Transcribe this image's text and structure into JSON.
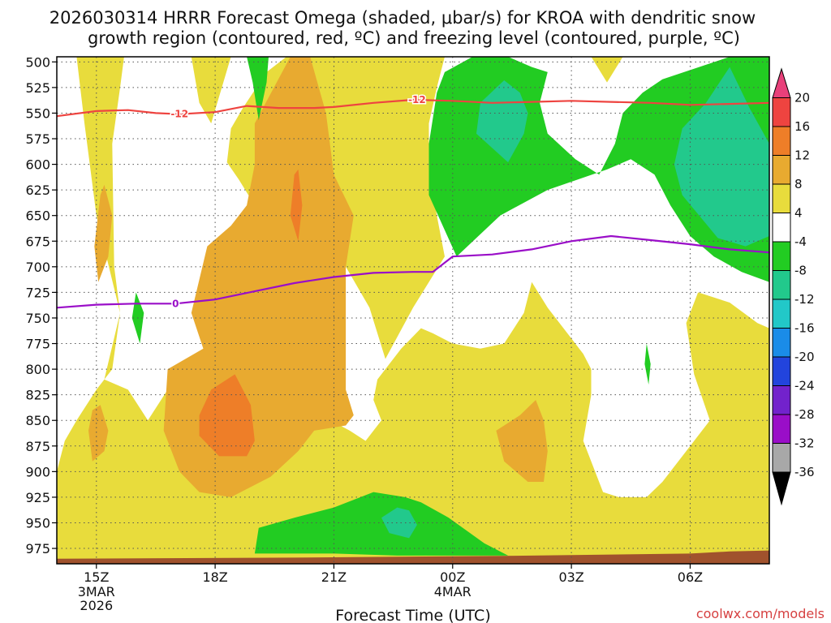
{
  "chart_data": {
    "type": "heatmap",
    "title": "2026030314 HRRR Forecast Omega (shaded, μbar/s) for KROA with dendritic snow growth region (contoured, red, ºC) and freezing level (contoured, purple, ºC)",
    "title_lines": [
      "2026030314 HRRR Forecast Omega (shaded, μbar/s) for KROA with dendritic snow",
      "growth region (contoured, red, ºC) and freezing level (contoured, purple, ºC)"
    ],
    "xlabel": "Forecast Time (UTC)",
    "ylabel": "",
    "x_hours": [
      14,
      32
    ],
    "y_range": [
      990,
      495
    ],
    "y_ticks": [
      500,
      525,
      550,
      575,
      600,
      625,
      650,
      675,
      700,
      725,
      750,
      775,
      800,
      825,
      850,
      875,
      900,
      925,
      950,
      975
    ],
    "x_ticks": [
      {
        "hour": 15,
        "label": "15Z",
        "sub": [
          "3MAR",
          "2026"
        ]
      },
      {
        "hour": 18,
        "label": "18Z",
        "sub": []
      },
      {
        "hour": 21,
        "label": "21Z",
        "sub": []
      },
      {
        "hour": 24,
        "label": "00Z",
        "sub": [
          "4MAR"
        ]
      },
      {
        "hour": 27,
        "label": "03Z",
        "sub": []
      },
      {
        "hour": 30,
        "label": "06Z",
        "sub": []
      }
    ],
    "colorbar": {
      "levels": [
        20,
        16,
        12,
        8,
        4,
        -4,
        -8,
        -12,
        -16,
        -20,
        -24,
        -28,
        -32,
        -36
      ],
      "colors": [
        "#e8407a",
        "#ee4440",
        "#ee7e28",
        "#e8aa30",
        "#e8dc3c",
        "#ffffff",
        "#22cc22",
        "#22c98c",
        "#22c8c8",
        "#1a8ce8",
        "#2244dd",
        "#7222cc",
        "#9a0ec8",
        "#a8a8a8",
        "#000000"
      ]
    },
    "shading_colors": {
      "y4": "#e8dc3c",
      "y8": "#e8aa30",
      "o12": "#ee7e28",
      "g8": "#22cc22",
      "t12": "#22c98c",
      "ground": "#a0522d"
    },
    "dgz_minus12_line": {
      "label": "-12",
      "color": "#ee4440",
      "points": [
        [
          14,
          553
        ],
        [
          15,
          548
        ],
        [
          15.8,
          547
        ],
        [
          16.5,
          550
        ],
        [
          17.1,
          551
        ],
        [
          18,
          549
        ],
        [
          18.8,
          543
        ],
        [
          19.6,
          545
        ],
        [
          20.5,
          545
        ],
        [
          21,
          544
        ],
        [
          22,
          540
        ],
        [
          23,
          537
        ],
        [
          24,
          538
        ],
        [
          25,
          540
        ],
        [
          26,
          539
        ],
        [
          27,
          538
        ],
        [
          28,
          539
        ],
        [
          29,
          540
        ],
        [
          30,
          542
        ],
        [
          31,
          541
        ],
        [
          32,
          540
        ]
      ],
      "label_positions": [
        [
          17.1,
          551
        ],
        [
          23.1,
          537
        ]
      ]
    },
    "freezing_level_line": {
      "label": "0",
      "color": "#9a0ec8",
      "points": [
        [
          14,
          740
        ],
        [
          15,
          737
        ],
        [
          16,
          736
        ],
        [
          17,
          736
        ],
        [
          18,
          732
        ],
        [
          19,
          724
        ],
        [
          20,
          716
        ],
        [
          21,
          710
        ],
        [
          22,
          706
        ],
        [
          23,
          705
        ],
        [
          23.5,
          705
        ],
        [
          24,
          690
        ],
        [
          25,
          688
        ],
        [
          26,
          683
        ],
        [
          27,
          675
        ],
        [
          28,
          670
        ],
        [
          29,
          674
        ],
        [
          30,
          678
        ],
        [
          31,
          683
        ],
        [
          32,
          686
        ]
      ],
      "label_positions": [
        [
          17,
          736
        ]
      ]
    },
    "omega_regions": [
      {
        "level": "y4",
        "points": [
          [
            15.7,
            495
          ],
          [
            15.6,
            525
          ],
          [
            15.4,
            580
          ],
          [
            15.45,
            700
          ],
          [
            15.6,
            745
          ],
          [
            15.4,
            800
          ],
          [
            15.0,
            820
          ],
          [
            14.5,
            850
          ],
          [
            14.2,
            870
          ],
          [
            14.0,
            900
          ],
          [
            14.0,
            990
          ],
          [
            32,
            990
          ],
          [
            32,
            760
          ],
          [
            31.7,
            755
          ],
          [
            31.0,
            735
          ],
          [
            30.2,
            725
          ],
          [
            29.9,
            755
          ],
          [
            30.1,
            805
          ],
          [
            30.5,
            850
          ],
          [
            29.9,
            880
          ],
          [
            29.3,
            910
          ],
          [
            28.9,
            925
          ],
          [
            28.2,
            925
          ],
          [
            27.8,
            920
          ],
          [
            27.3,
            870
          ],
          [
            27.5,
            825
          ],
          [
            27.5,
            800
          ],
          [
            27.3,
            785
          ],
          [
            26.9,
            765
          ],
          [
            26.4,
            740
          ],
          [
            26.0,
            715
          ],
          [
            25.8,
            745
          ],
          [
            25.3,
            775
          ],
          [
            24.7,
            780
          ],
          [
            24.0,
            775
          ],
          [
            23.5,
            765
          ],
          [
            23.2,
            760
          ],
          [
            22.7,
            780
          ],
          [
            22.1,
            810
          ],
          [
            22.0,
            830
          ],
          [
            22.2,
            850
          ],
          [
            21.8,
            870
          ],
          [
            21.4,
            860
          ],
          [
            20.2,
            835
          ],
          [
            19.6,
            865
          ],
          [
            19.3,
            835
          ],
          [
            18.8,
            805
          ],
          [
            18.4,
            780
          ],
          [
            17.9,
            780
          ],
          [
            17.3,
            795
          ],
          [
            16.8,
            820
          ],
          [
            16.3,
            850
          ],
          [
            15.8,
            820
          ],
          [
            15.2,
            810
          ],
          [
            15.6,
            745
          ],
          [
            15.0,
            650
          ],
          [
            14.8,
            590
          ],
          [
            14.7,
            560
          ],
          [
            14.5,
            495
          ]
        ]
      },
      {
        "level": "y4",
        "points": [
          [
            17.4,
            495
          ],
          [
            18.4,
            495
          ],
          [
            17.9,
            560
          ],
          [
            17.6,
            540
          ]
        ]
      },
      {
        "level": "y4",
        "points": [
          [
            23.8,
            495
          ],
          [
            23.6,
            525
          ],
          [
            23.4,
            560
          ],
          [
            23.4,
            600
          ],
          [
            23.6,
            650
          ],
          [
            23.8,
            690
          ],
          [
            23.0,
            740
          ],
          [
            22.3,
            790
          ],
          [
            21.9,
            740
          ],
          [
            21.3,
            700
          ],
          [
            20.7,
            665
          ],
          [
            19.6,
            650
          ],
          [
            19.0,
            640
          ],
          [
            18.6,
            615
          ],
          [
            18.3,
            598
          ],
          [
            18.4,
            565
          ],
          [
            18.7,
            545
          ],
          [
            19.3,
            510
          ],
          [
            19.8,
            495
          ]
        ]
      },
      {
        "level": "y4",
        "points": [
          [
            28.3,
            495
          ],
          [
            27.5,
            495
          ],
          [
            27.9,
            520
          ]
        ]
      },
      {
        "level": "y8",
        "points": [
          [
            19.9,
            495
          ],
          [
            19.0,
            560
          ],
          [
            19.0,
            600
          ],
          [
            18.8,
            640
          ],
          [
            18.4,
            660
          ],
          [
            17.8,
            680
          ],
          [
            17.4,
            745
          ],
          [
            17.7,
            780
          ],
          [
            16.8,
            800
          ],
          [
            16.7,
            860
          ],
          [
            17.1,
            900
          ],
          [
            17.6,
            920
          ],
          [
            18.4,
            925
          ],
          [
            19.4,
            905
          ],
          [
            20.1,
            880
          ],
          [
            20.5,
            860
          ],
          [
            21.3,
            855
          ],
          [
            21.5,
            845
          ],
          [
            21.3,
            820
          ],
          [
            21.3,
            700
          ],
          [
            21.5,
            650
          ],
          [
            21.0,
            610
          ],
          [
            20.8,
            550
          ],
          [
            20.4,
            495
          ]
        ]
      },
      {
        "level": "y8",
        "points": [
          [
            15.1,
            630
          ],
          [
            14.95,
            680
          ],
          [
            15.05,
            715
          ],
          [
            15.3,
            690
          ],
          [
            15.4,
            650
          ],
          [
            15.2,
            620
          ]
        ]
      },
      {
        "level": "y8",
        "points": [
          [
            14.9,
            840
          ],
          [
            14.8,
            860
          ],
          [
            14.9,
            890
          ],
          [
            15.2,
            880
          ],
          [
            15.3,
            860
          ],
          [
            15.1,
            835
          ]
        ]
      },
      {
        "level": "y8",
        "points": [
          [
            26.1,
            830
          ],
          [
            25.7,
            845
          ],
          [
            25.1,
            860
          ],
          [
            25.3,
            890
          ],
          [
            25.9,
            910
          ],
          [
            26.3,
            910
          ],
          [
            26.4,
            880
          ],
          [
            26.3,
            850
          ]
        ]
      },
      {
        "level": "o12",
        "points": [
          [
            17.9,
            820
          ],
          [
            17.6,
            845
          ],
          [
            17.6,
            865
          ],
          [
            18.1,
            885
          ],
          [
            18.8,
            885
          ],
          [
            19.0,
            870
          ],
          [
            18.9,
            835
          ],
          [
            18.5,
            805
          ]
        ]
      },
      {
        "level": "o12",
        "points": [
          [
            20.0,
            610
          ],
          [
            19.9,
            650
          ],
          [
            20.1,
            675
          ],
          [
            20.2,
            640
          ],
          [
            20.1,
            605
          ]
        ]
      },
      {
        "level": "g8",
        "points": [
          [
            24.5,
            495
          ],
          [
            25.4,
            495
          ],
          [
            26.0,
            505
          ],
          [
            26.4,
            510
          ],
          [
            26.2,
            540
          ],
          [
            26.4,
            570
          ],
          [
            27.1,
            595
          ],
          [
            27.7,
            610
          ],
          [
            28.1,
            580
          ],
          [
            28.3,
            550
          ],
          [
            28.8,
            530
          ],
          [
            29.3,
            517
          ],
          [
            31.0,
            495
          ],
          [
            32,
            495
          ],
          [
            32,
            715
          ],
          [
            31.3,
            705
          ],
          [
            30.6,
            690
          ],
          [
            30.0,
            670
          ],
          [
            29.5,
            640
          ],
          [
            29.1,
            610
          ],
          [
            28.5,
            595
          ],
          [
            27.9,
            605
          ],
          [
            26.4,
            625
          ],
          [
            25.2,
            650
          ],
          [
            24.1,
            690
          ],
          [
            23.4,
            630
          ],
          [
            23.4,
            580
          ],
          [
            23.6,
            530
          ],
          [
            23.8,
            510
          ]
        ]
      },
      {
        "level": "g8",
        "points": [
          [
            18.8,
            495
          ],
          [
            19.35,
            495
          ],
          [
            19.3,
            520
          ],
          [
            19.1,
            557
          ],
          [
            18.95,
            520
          ]
        ]
      },
      {
        "level": "g8",
        "points": [
          [
            16.0,
            725
          ],
          [
            16.2,
            745
          ],
          [
            16.1,
            775
          ],
          [
            15.9,
            750
          ]
        ]
      },
      {
        "level": "g8",
        "points": [
          [
            28.9,
            775
          ],
          [
            29.0,
            795
          ],
          [
            28.95,
            815
          ],
          [
            28.85,
            795
          ]
        ]
      },
      {
        "level": "g8",
        "points": [
          [
            22.0,
            920
          ],
          [
            21.0,
            935
          ],
          [
            20.0,
            945
          ],
          [
            19.1,
            955
          ],
          [
            19.0,
            980
          ],
          [
            21.0,
            980
          ],
          [
            22.6,
            982
          ],
          [
            25.4,
            982
          ],
          [
            24.8,
            970
          ],
          [
            23.9,
            945
          ],
          [
            23.2,
            930
          ],
          [
            22.8,
            925
          ]
        ]
      },
      {
        "level": "t12",
        "points": [
          [
            25.3,
            518
          ],
          [
            24.7,
            540
          ],
          [
            24.6,
            570
          ],
          [
            25.4,
            598
          ],
          [
            25.8,
            570
          ],
          [
            25.9,
            550
          ],
          [
            25.7,
            530
          ]
        ]
      },
      {
        "level": "t12",
        "points": [
          [
            31.0,
            505
          ],
          [
            30.4,
            540
          ],
          [
            29.8,
            565
          ],
          [
            29.6,
            600
          ],
          [
            29.8,
            630
          ],
          [
            30.7,
            672
          ],
          [
            31.4,
            680
          ],
          [
            32,
            670
          ],
          [
            32,
            580
          ],
          [
            31.5,
            545
          ]
        ]
      },
      {
        "level": "t12",
        "points": [
          [
            22.6,
            935
          ],
          [
            22.2,
            945
          ],
          [
            22.4,
            960
          ],
          [
            22.9,
            965
          ],
          [
            23.1,
            952
          ],
          [
            22.9,
            938
          ]
        ]
      },
      {
        "level": "ground",
        "points": [
          [
            14,
            985
          ],
          [
            20,
            984
          ],
          [
            26,
            982
          ],
          [
            30,
            980
          ],
          [
            31,
            978
          ],
          [
            32,
            977
          ],
          [
            32,
            990
          ],
          [
            14,
            990
          ]
        ]
      }
    ],
    "legend_position": "right"
  },
  "credit": "coolwx.com/models"
}
